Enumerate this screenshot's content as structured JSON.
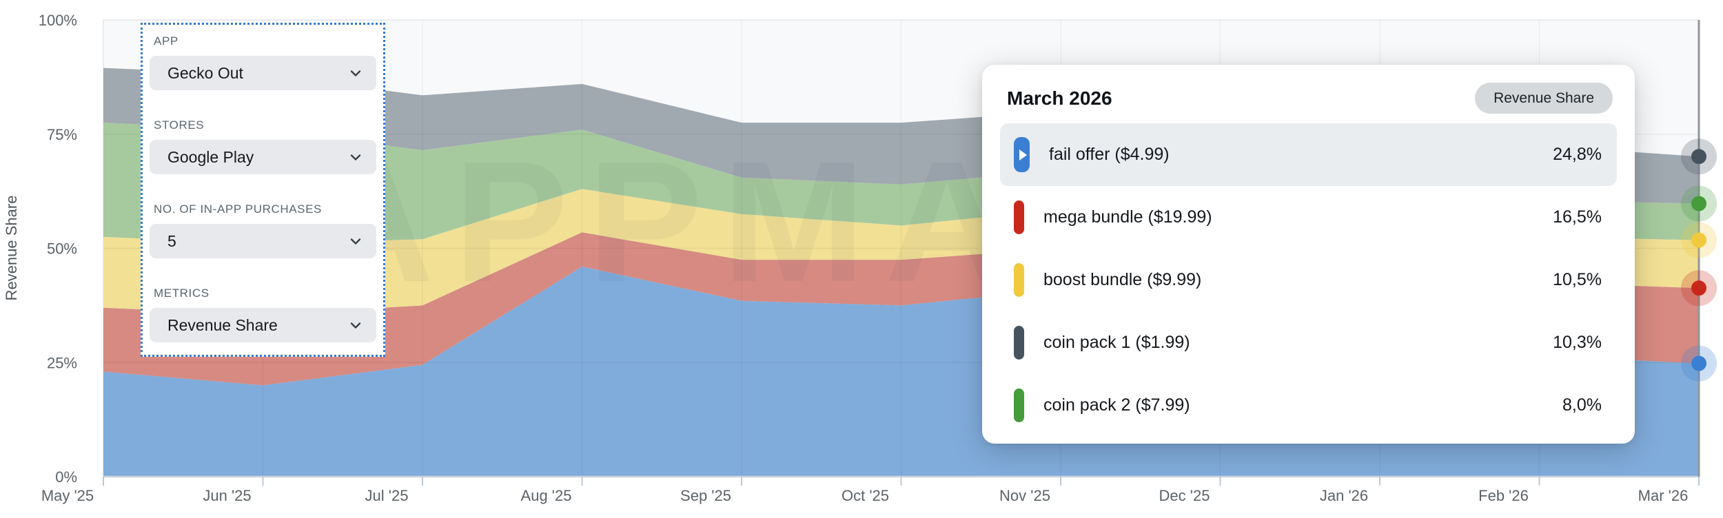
{
  "watermark": "APPMAGIC",
  "y_axis": {
    "label": "Revenue Share",
    "ticks": [
      "100%",
      "75%",
      "50%",
      "25%",
      "0%"
    ]
  },
  "x_axis": {
    "ticks": [
      "May '25",
      "Jun '25",
      "Jul '25",
      "Aug '25",
      "Sep '25",
      "Oct '25",
      "Nov '25",
      "Dec '25",
      "Jan '26",
      "Feb '26",
      "Mar '26"
    ]
  },
  "filters": {
    "groups": [
      {
        "label": "APP",
        "value": "Gecko Out"
      },
      {
        "label": "STORES",
        "value": "Google Play"
      },
      {
        "label": "NO. OF IN-APP PURCHASES",
        "value": "5"
      },
      {
        "label": "METRICS",
        "value": "Revenue Share"
      }
    ]
  },
  "tooltip": {
    "title": "March 2026",
    "badge": "Revenue Share",
    "rows": [
      {
        "name": "fail offer ($4.99)",
        "value": "24,8%",
        "color": "#3a7fd2",
        "highlight": true
      },
      {
        "name": "mega bundle ($19.99)",
        "value": "16,5%",
        "color": "#c8281c",
        "highlight": false
      },
      {
        "name": "boost bundle ($9.99)",
        "value": "10,5%",
        "color": "#f0c93c",
        "highlight": false
      },
      {
        "name": "coin pack 1 ($1.99)",
        "value": "10,3%",
        "color": "#46535e",
        "highlight": false
      },
      {
        "name": "coin pack 2 ($7.99)",
        "value": "8,0%",
        "color": "#449c3a",
        "highlight": false
      }
    ]
  },
  "chart_data": {
    "type": "area",
    "stacked": true,
    "title": "",
    "xlabel": "",
    "ylabel": "Revenue Share",
    "ylim": [
      0,
      100
    ],
    "unit": "%",
    "grid": true,
    "x": [
      "May '25",
      "Jun '25",
      "Jul '25",
      "Aug '25",
      "Sep '25",
      "Oct '25",
      "Nov '25",
      "Dec '25",
      "Jan '26",
      "Feb '26",
      "Mar '26"
    ],
    "hover_point": "Mar '26",
    "hover_title": "March 2026",
    "series": [
      {
        "name": "fail offer ($4.99)",
        "color": "#80acdb",
        "line_color": "#3a7fd2",
        "values": [
          23,
          20,
          24.5,
          46,
          38.5,
          37.5,
          41,
          36,
          30.5,
          26.5,
          24.8
        ]
      },
      {
        "name": "mega bundle ($19.99)",
        "color": "#d68a82",
        "line_color": "#c8281c",
        "values": [
          14,
          15.5,
          13,
          7.5,
          9,
          10,
          9,
          10.5,
          14,
          16,
          16.5
        ]
      },
      {
        "name": "boost bundle ($9.99)",
        "color": "#f2e094",
        "line_color": "#f0c93c",
        "values": [
          15.5,
          15.5,
          14.5,
          9.5,
          10,
          7.5,
          8.5,
          9,
          9,
          10,
          10.5
        ]
      },
      {
        "name": "coin pack 2 ($7.99)",
        "color": "#a6ca9e",
        "line_color": "#449c3a",
        "values": [
          25,
          25,
          19.5,
          13,
          8,
          9,
          8.5,
          8.5,
          8.5,
          8,
          8
        ]
      },
      {
        "name": "coin pack 1 ($1.99)",
        "color": "#a0a8b0",
        "line_color": "#46535e",
        "values": [
          12,
          12,
          12,
          10,
          12,
          13.5,
          13,
          13,
          12.5,
          12,
          10.3
        ]
      }
    ]
  }
}
